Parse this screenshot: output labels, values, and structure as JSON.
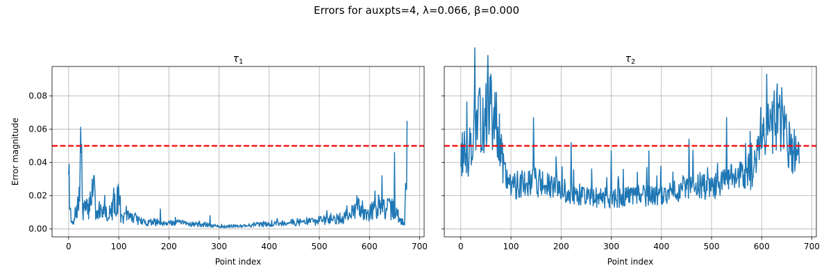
{
  "figure": {
    "suptitle": "Errors for auxpts=4, λ=0.066, β=0.000"
  },
  "colors": {
    "series": "#1f77b4",
    "threshold": "#ff0000",
    "grid": "#b0b0b0"
  },
  "chart_data": [
    {
      "type": "line",
      "title": "τ1",
      "title_main": "τ",
      "title_sub": "1",
      "xlabel": "Point index",
      "ylabel": "Error magnitude",
      "xlim": [
        -33,
        709
      ],
      "ylim": [
        -0.0047,
        0.0977
      ],
      "xticks": [
        0,
        100,
        200,
        300,
        400,
        500,
        600,
        700
      ],
      "yticks": [
        0.0,
        0.02,
        0.04,
        0.06,
        0.08
      ],
      "ytick_labels": [
        "0.00",
        "0.02",
        "0.04",
        "0.06",
        "0.08"
      ],
      "grid": true,
      "threshold": 0.05,
      "n_points": 676,
      "profile": [
        [
          0,
          0.046
        ],
        [
          3,
          0.012
        ],
        [
          5,
          0.004
        ],
        [
          10,
          0.003
        ],
        [
          15,
          0.012
        ],
        [
          20,
          0.014
        ],
        [
          25,
          0.046
        ],
        [
          28,
          0.012
        ],
        [
          40,
          0.012
        ],
        [
          50,
          0.03
        ],
        [
          55,
          0.006
        ],
        [
          70,
          0.014
        ],
        [
          80,
          0.007
        ],
        [
          100,
          0.019
        ],
        [
          105,
          0.006
        ],
        [
          120,
          0.008
        ],
        [
          150,
          0.004
        ],
        [
          200,
          0.004
        ],
        [
          250,
          0.003
        ],
        [
          300,
          0.0015
        ],
        [
          350,
          0.002
        ],
        [
          400,
          0.003
        ],
        [
          450,
          0.004
        ],
        [
          500,
          0.005
        ],
        [
          540,
          0.006
        ],
        [
          560,
          0.008
        ],
        [
          580,
          0.013
        ],
        [
          600,
          0.01
        ],
        [
          620,
          0.014
        ],
        [
          630,
          0.012
        ],
        [
          650,
          0.012
        ],
        [
          660,
          0.004
        ],
        [
          670,
          0.004
        ],
        [
          675,
          0.046
        ]
      ],
      "spikes": [
        [
          25,
          0.046
        ],
        [
          50,
          0.032
        ],
        [
          103,
          0.02
        ],
        [
          183,
          0.012
        ],
        [
          282,
          0.008
        ],
        [
          515,
          0.011
        ],
        [
          555,
          0.014
        ],
        [
          575,
          0.02
        ],
        [
          625,
          0.032
        ],
        [
          650,
          0.046
        ]
      ],
      "noise": 0.55,
      "seed": 7
    },
    {
      "type": "line",
      "title": "τ2",
      "title_main": "τ",
      "title_sub": "2",
      "xlabel": "Point index",
      "ylabel": "",
      "xlim": [
        -33,
        709
      ],
      "ylim": [
        -0.0047,
        0.0977
      ],
      "xticks": [
        0,
        100,
        200,
        300,
        400,
        500,
        600,
        700
      ],
      "yticks": [
        0.0,
        0.02,
        0.04,
        0.06,
        0.08
      ],
      "ytick_labels": [
        "",
        "",
        "",
        "",
        ""
      ],
      "grid": true,
      "threshold": 0.05,
      "n_points": 676,
      "profile": [
        [
          0,
          0.045
        ],
        [
          15,
          0.045
        ],
        [
          25,
          0.06
        ],
        [
          40,
          0.065
        ],
        [
          60,
          0.072
        ],
        [
          75,
          0.06
        ],
        [
          85,
          0.035
        ],
        [
          100,
          0.025
        ],
        [
          140,
          0.03
        ],
        [
          200,
          0.022
        ],
        [
          250,
          0.02
        ],
        [
          300,
          0.018
        ],
        [
          350,
          0.02
        ],
        [
          400,
          0.02
        ],
        [
          450,
          0.025
        ],
        [
          500,
          0.025
        ],
        [
          540,
          0.03
        ],
        [
          580,
          0.035
        ],
        [
          600,
          0.062
        ],
        [
          640,
          0.068
        ],
        [
          655,
          0.05
        ],
        [
          665,
          0.042
        ],
        [
          675,
          0.045
        ]
      ],
      "spikes": [
        [
          60,
          0.093
        ],
        [
          610,
          0.093
        ],
        [
          145,
          0.067
        ],
        [
          530,
          0.067
        ],
        [
          220,
          0.052
        ],
        [
          455,
          0.054
        ],
        [
          375,
          0.047
        ],
        [
          300,
          0.047
        ],
        [
          640,
          0.085
        ]
      ],
      "noise": 0.32,
      "seed": 13
    }
  ]
}
